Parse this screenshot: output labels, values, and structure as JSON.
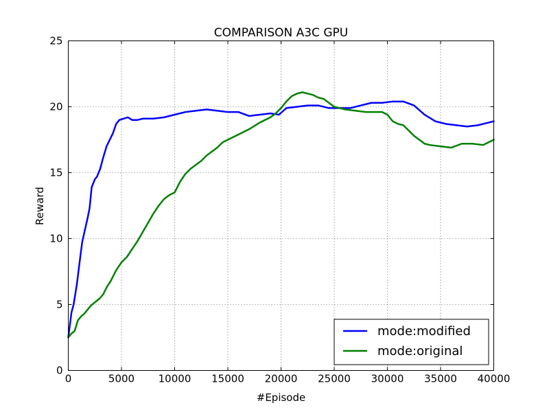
{
  "chart_data": {
    "type": "line",
    "title": "COMPARISON A3C GPU",
    "xlabel": "#Episode",
    "ylabel": "Reward",
    "xlim": [
      0,
      40000
    ],
    "ylim": [
      0,
      25
    ],
    "xticks": [
      0,
      5000,
      10000,
      15000,
      20000,
      25000,
      30000,
      35000,
      40000
    ],
    "yticks": [
      0,
      5,
      10,
      15,
      20,
      25
    ],
    "grid": true,
    "legend_position": "lower-right",
    "series": [
      {
        "name": "mode:modified",
        "color": "#0000ff",
        "x": [
          0,
          300,
          500,
          800,
          1000,
          1300,
          1600,
          1800,
          2000,
          2200,
          2500,
          2700,
          3000,
          3300,
          3600,
          3900,
          4200,
          4500,
          4800,
          5200,
          5600,
          6000,
          6500,
          7000,
          8000,
          9000,
          10000,
          11000,
          12000,
          13000,
          14000,
          15000,
          16000,
          17000,
          18000,
          19000,
          19800,
          20500,
          21500,
          22500,
          23500,
          24500,
          25500,
          26500,
          27500,
          28500,
          29500,
          30500,
          31500,
          32500,
          33500,
          34500,
          35500,
          36500,
          37500,
          38500,
          39500,
          40000
        ],
        "y": [
          2.5,
          4.4,
          5.0,
          6.5,
          7.8,
          9.7,
          10.8,
          11.5,
          12.3,
          13.9,
          14.5,
          14.7,
          15.3,
          16.2,
          17.0,
          17.5,
          18.0,
          18.7,
          19.0,
          19.1,
          19.2,
          19.0,
          19.0,
          19.1,
          19.1,
          19.2,
          19.4,
          19.6,
          19.7,
          19.8,
          19.7,
          19.6,
          19.6,
          19.3,
          19.4,
          19.5,
          19.4,
          19.9,
          20.0,
          20.1,
          20.1,
          19.9,
          19.9,
          19.9,
          20.1,
          20.3,
          20.3,
          20.4,
          20.4,
          20.1,
          19.4,
          18.9,
          18.7,
          18.6,
          18.5,
          18.6,
          18.8,
          18.9
        ]
      },
      {
        "name": "mode:original",
        "color": "#008000",
        "x": [
          0,
          300,
          600,
          900,
          1200,
          1500,
          1800,
          2100,
          2400,
          2700,
          3000,
          3300,
          3600,
          4000,
          4500,
          5000,
          5500,
          6000,
          6500,
          7000,
          7500,
          8000,
          8500,
          9000,
          9500,
          10000,
          10500,
          11000,
          11500,
          12000,
          12500,
          13000,
          13500,
          14000,
          14500,
          15000,
          16000,
          17000,
          18000,
          19000,
          19500,
          20000,
          20500,
          21000,
          21500,
          22000,
          22500,
          23000,
          23500,
          24000,
          25000,
          26000,
          27000,
          28000,
          29000,
          29500,
          30000,
          30500,
          31000,
          31500,
          32000,
          32500,
          33000,
          33500,
          34000,
          35000,
          36000,
          37000,
          38000,
          39000,
          40000
        ],
        "y": [
          2.5,
          2.8,
          3.0,
          3.8,
          4.1,
          4.3,
          4.6,
          4.9,
          5.1,
          5.3,
          5.5,
          5.8,
          6.3,
          6.8,
          7.6,
          8.2,
          8.6,
          9.2,
          9.8,
          10.5,
          11.2,
          11.9,
          12.5,
          13.0,
          13.3,
          13.5,
          14.3,
          14.9,
          15.3,
          15.6,
          15.9,
          16.3,
          16.6,
          16.9,
          17.3,
          17.5,
          17.9,
          18.3,
          18.8,
          19.2,
          19.5,
          19.9,
          20.4,
          20.8,
          21.0,
          21.1,
          21.0,
          20.9,
          20.7,
          20.6,
          20.0,
          19.8,
          19.7,
          19.6,
          19.6,
          19.6,
          19.4,
          18.9,
          18.7,
          18.6,
          18.2,
          17.8,
          17.5,
          17.2,
          17.1,
          17.0,
          16.9,
          17.2,
          17.2,
          17.1,
          17.5
        ]
      }
    ]
  }
}
